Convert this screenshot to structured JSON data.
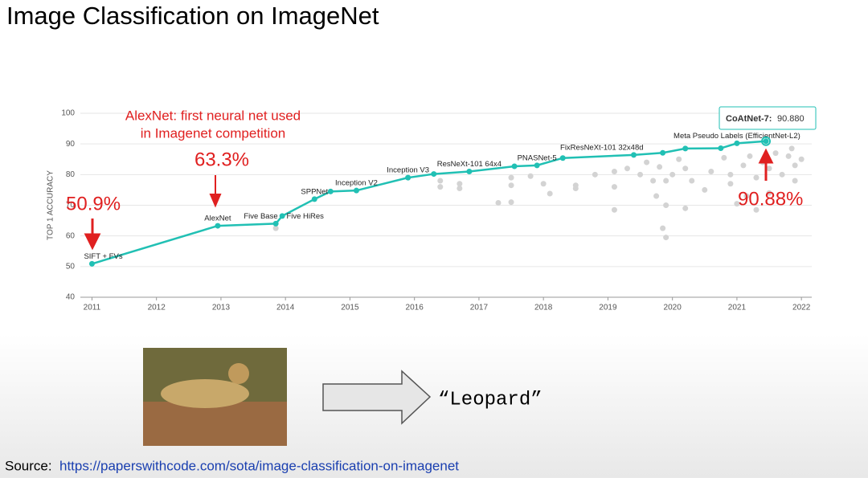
{
  "slide": {
    "title": "Image Classification on ImageNet",
    "output_text": "“Leopard”",
    "source_prefix": "Source:",
    "source_url": "https://paperswithcode.com/sota/image-classification-on-imagenet"
  },
  "chart_data": {
    "type": "line",
    "y_label": "TOP 1 ACCURACY",
    "xlim": [
      2010.82,
      2022.16
    ],
    "xticks": [
      2011,
      2012,
      2013,
      2014,
      2015,
      2016,
      2017,
      2018,
      2019,
      2020,
      2021,
      2022
    ],
    "ylim": [
      40,
      100
    ],
    "yticks": [
      40,
      50,
      60,
      70,
      80,
      90,
      100
    ],
    "grid": true,
    "series": [
      {
        "mode": "scatter",
        "color": "#d3d3d3",
        "x": [
          2013.85,
          2016.4,
          2016.4,
          2016.7,
          2016.7,
          2017.3,
          2017.5,
          2017.5,
          2017.5,
          2017.8,
          2018.0,
          2018.1,
          2018.5,
          2018.5,
          2018.8,
          2019.1,
          2019.1,
          2019.1,
          2019.3,
          2019.5,
          2019.6,
          2019.7,
          2019.75,
          2019.8,
          2019.85,
          2019.9,
          2019.9,
          2019.9,
          2020.0,
          2020.1,
          2020.2,
          2020.2,
          2020.3,
          2020.5,
          2020.6,
          2020.8,
          2020.9,
          2020.9,
          2021.0,
          2021.1,
          2021.15,
          2021.2,
          2021.3,
          2021.3,
          2021.4,
          2021.5,
          2021.5,
          2021.6,
          2021.7,
          2021.8,
          2021.9,
          2021.9,
          2022.0,
          2021.85
        ],
        "values": [
          62.5,
          76,
          78,
          77,
          75.5,
          70.8,
          71,
          76.5,
          79,
          79.5,
          77,
          73.8,
          75.5,
          76.5,
          80,
          81,
          76,
          68.5,
          82,
          80,
          84,
          78,
          73,
          82.5,
          62.5,
          59.5,
          70,
          78,
          80,
          85,
          82,
          69,
          78,
          75,
          81,
          85.5,
          80,
          77,
          70.5,
          83,
          73,
          86,
          79,
          68.5,
          84,
          74,
          82,
          87,
          80,
          86,
          78,
          83,
          85,
          88.5
        ]
      },
      {
        "mode": "line",
        "color": "#21c0b4",
        "x": [
          2011.0,
          2012.95,
          2013.85,
          2013.95,
          2014.45,
          2014.7,
          2015.1,
          2015.9,
          2016.3,
          2016.85,
          2017.55,
          2017.9,
          2018.3,
          2019.4,
          2019.85,
          2020.2,
          2020.75,
          2021.0,
          2021.45
        ],
        "values": [
          50.9,
          63.3,
          64.0,
          66.5,
          72.0,
          74.5,
          74.8,
          79.0,
          80.2,
          81.0,
          82.7,
          83.0,
          85.4,
          86.4,
          87.1,
          88.5,
          88.6,
          90.2,
          90.88
        ],
        "point_labels": [
          "SIFT + FVs",
          "AlexNet",
          "Five Base + Five HiRes",
          null,
          "SPPNet",
          null,
          "Inception V2",
          "Inception V3",
          null,
          "ResNeXt-101 64x4",
          null,
          "PNASNet-5",
          null,
          "FixResNeXt-101 32x48d",
          null,
          null,
          null,
          "Meta Pseudo Labels (EfficientNet-L2)",
          null
        ]
      }
    ],
    "tooltip": {
      "name": "CoAtNet-7:",
      "value": 90.88,
      "value_label": "90.880"
    },
    "annotations": [
      {
        "lines": [
          "AlexNet: first neural net used",
          "in Imagenet competition"
        ],
        "color": "#e02020"
      },
      {
        "text": "63.3%",
        "color": "#e02020"
      },
      {
        "text": "50.9%",
        "color": "#e02020"
      },
      {
        "text": "90.88%",
        "color": "#e02020"
      }
    ]
  }
}
